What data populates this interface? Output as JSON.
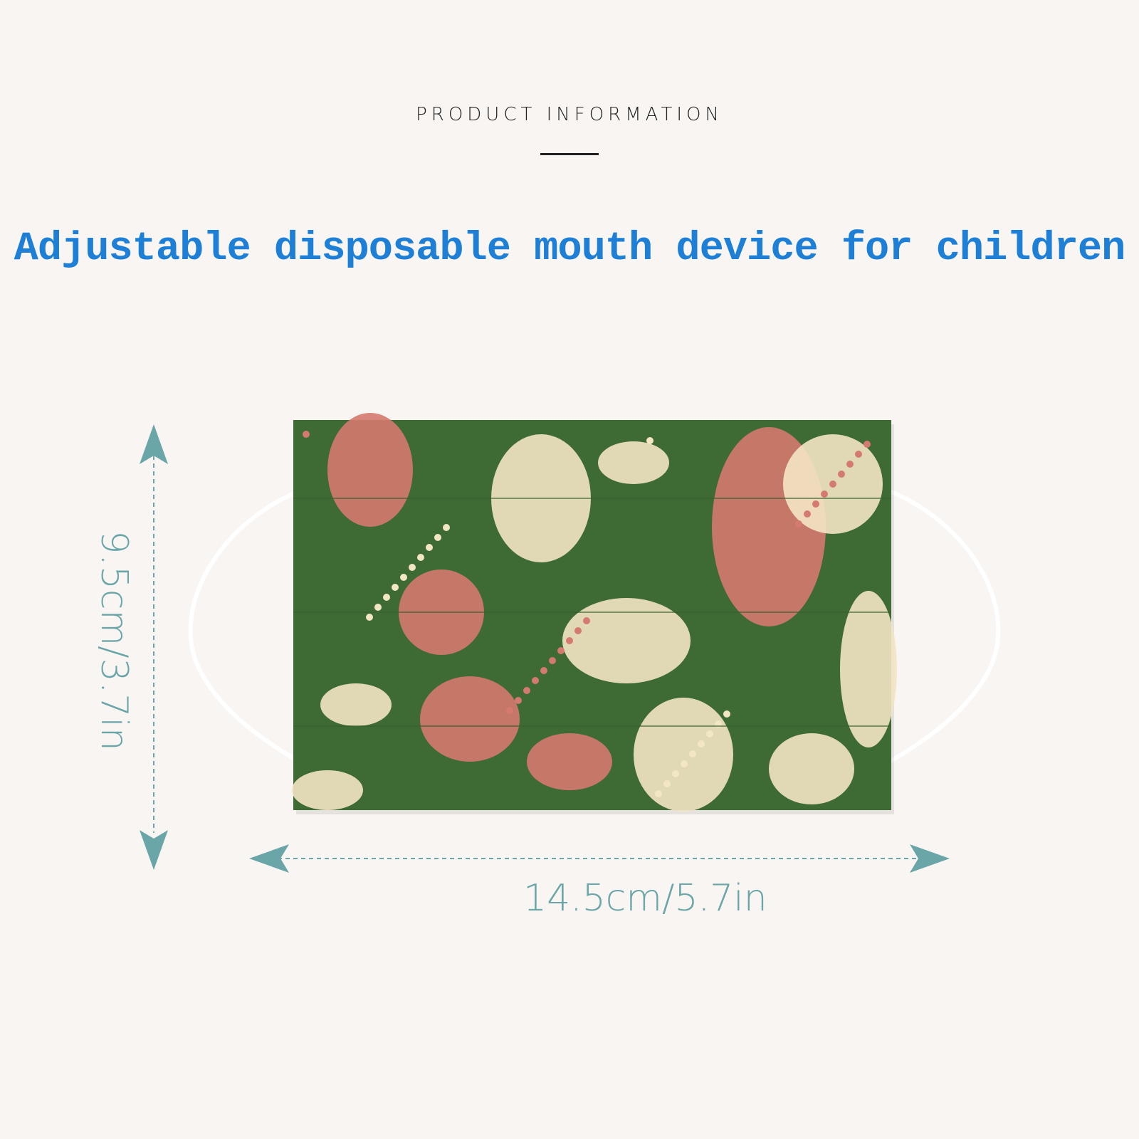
{
  "header": {
    "label": "PRODUCT INFORMATION"
  },
  "title": "Adjustable disposable mouth device for children",
  "dimensions": {
    "width": "14.5cm/5.7in",
    "height": "9.5cm/3.7in"
  },
  "colors": {
    "accent_text": "#1e7fd6",
    "dimension": "#6aa5a8",
    "mask_green": "#3e6a34",
    "mask_red": "#d47a6e",
    "mask_cream": "#f3e6c4"
  }
}
